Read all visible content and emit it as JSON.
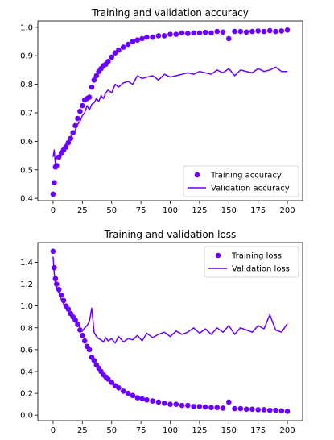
{
  "chart_data": [
    {
      "type": "line",
      "title": "Training and validation accuracy",
      "xlim": [
        -13,
        213
      ],
      "ylim": [
        0.392,
        1.022
      ],
      "x_ticks": [
        0,
        25,
        50,
        75,
        100,
        125,
        150,
        175,
        200
      ],
      "y_ticks": [
        0.4,
        0.5,
        0.6,
        0.7,
        0.8,
        0.9,
        1.0
      ],
      "x_tick_labels": [
        "0",
        "25",
        "50",
        "75",
        "100",
        "125",
        "150",
        "175",
        "200"
      ],
      "y_tick_labels": [
        "0.4",
        "0.5",
        "0.6",
        "0.7",
        "0.8",
        "0.9",
        "1.0"
      ],
      "legend_position": "lower-right",
      "series": [
        {
          "name": "Training accuracy",
          "style": "scatter",
          "color": "#6a00ff",
          "x": [
            0,
            1,
            2,
            3,
            5,
            7,
            9,
            11,
            13,
            15,
            17,
            19,
            21,
            23,
            25,
            27,
            29,
            31,
            33,
            35,
            37,
            39,
            41,
            43,
            45,
            47,
            50,
            53,
            56,
            60,
            64,
            68,
            72,
            76,
            80,
            85,
            90,
            95,
            100,
            105,
            110,
            115,
            120,
            125,
            130,
            135,
            140,
            145,
            150,
            155,
            160,
            165,
            170,
            175,
            180,
            185,
            190,
            195,
            200
          ],
          "y": [
            0.415,
            0.455,
            0.51,
            0.515,
            0.545,
            0.56,
            0.57,
            0.58,
            0.595,
            0.61,
            0.63,
            0.655,
            0.68,
            0.705,
            0.725,
            0.745,
            0.75,
            0.755,
            0.79,
            0.815,
            0.83,
            0.845,
            0.855,
            0.865,
            0.87,
            0.88,
            0.895,
            0.91,
            0.92,
            0.93,
            0.94,
            0.95,
            0.955,
            0.96,
            0.965,
            0.965,
            0.97,
            0.97,
            0.975,
            0.975,
            0.98,
            0.978,
            0.98,
            0.98,
            0.982,
            0.98,
            0.985,
            0.983,
            0.96,
            0.985,
            0.985,
            0.983,
            0.985,
            0.987,
            0.985,
            0.988,
            0.985,
            0.987,
            0.99
          ]
        },
        {
          "name": "Validation accuracy",
          "style": "line",
          "color": "#6a00ff",
          "x": [
            0,
            1,
            2,
            3,
            5,
            7,
            9,
            11,
            13,
            15,
            17,
            19,
            21,
            23,
            25,
            27,
            29,
            31,
            33,
            35,
            37,
            39,
            41,
            43,
            45,
            47,
            50,
            53,
            56,
            60,
            64,
            68,
            72,
            76,
            80,
            85,
            90,
            95,
            100,
            105,
            110,
            115,
            120,
            125,
            130,
            135,
            140,
            145,
            150,
            155,
            160,
            165,
            170,
            175,
            180,
            185,
            190,
            195,
            200
          ],
          "y": [
            0.545,
            0.57,
            0.52,
            0.55,
            0.545,
            0.555,
            0.58,
            0.59,
            0.605,
            0.615,
            0.625,
            0.64,
            0.66,
            0.67,
            0.69,
            0.7,
            0.725,
            0.71,
            0.73,
            0.735,
            0.75,
            0.74,
            0.76,
            0.75,
            0.77,
            0.78,
            0.77,
            0.8,
            0.79,
            0.805,
            0.81,
            0.8,
            0.83,
            0.82,
            0.825,
            0.83,
            0.815,
            0.835,
            0.825,
            0.83,
            0.835,
            0.84,
            0.835,
            0.845,
            0.84,
            0.835,
            0.85,
            0.84,
            0.855,
            0.83,
            0.85,
            0.845,
            0.84,
            0.855,
            0.845,
            0.85,
            0.86,
            0.845,
            0.845
          ]
        }
      ]
    },
    {
      "type": "line",
      "title": "Training and validation loss",
      "xlim": [
        -13,
        213
      ],
      "ylim": [
        -0.05,
        1.58
      ],
      "x_ticks": [
        0,
        25,
        50,
        75,
        100,
        125,
        150,
        175,
        200
      ],
      "y_ticks": [
        0.0,
        0.2,
        0.4,
        0.6,
        0.8,
        1.0,
        1.2,
        1.4
      ],
      "x_tick_labels": [
        "0",
        "25",
        "50",
        "75",
        "100",
        "125",
        "150",
        "175",
        "200"
      ],
      "y_tick_labels": [
        "0.0",
        "0.2",
        "0.4",
        "0.6",
        "0.8",
        "1.0",
        "1.2",
        "1.4"
      ],
      "legend_position": "upper-right",
      "series": [
        {
          "name": "Training loss",
          "style": "scatter",
          "color": "#6a00ff",
          "x": [
            0,
            1,
            2,
            3,
            5,
            7,
            9,
            11,
            13,
            15,
            17,
            19,
            21,
            23,
            25,
            27,
            29,
            31,
            33,
            35,
            37,
            39,
            41,
            43,
            45,
            47,
            50,
            53,
            56,
            60,
            64,
            68,
            72,
            76,
            80,
            85,
            90,
            95,
            100,
            105,
            110,
            115,
            120,
            125,
            130,
            135,
            140,
            145,
            150,
            155,
            160,
            165,
            170,
            175,
            180,
            185,
            190,
            195,
            200
          ],
          "y": [
            1.5,
            1.35,
            1.25,
            1.2,
            1.15,
            1.1,
            1.05,
            1.0,
            0.97,
            0.93,
            0.9,
            0.87,
            0.83,
            0.78,
            0.73,
            0.68,
            0.63,
            0.6,
            0.53,
            0.5,
            0.46,
            0.43,
            0.4,
            0.37,
            0.35,
            0.33,
            0.3,
            0.27,
            0.25,
            0.22,
            0.2,
            0.18,
            0.16,
            0.15,
            0.14,
            0.13,
            0.12,
            0.11,
            0.1,
            0.1,
            0.09,
            0.09,
            0.08,
            0.08,
            0.075,
            0.07,
            0.07,
            0.065,
            0.12,
            0.06,
            0.06,
            0.055,
            0.055,
            0.05,
            0.05,
            0.045,
            0.045,
            0.04,
            0.035
          ]
        },
        {
          "name": "Validation loss",
          "style": "line",
          "color": "#6a00ff",
          "x": [
            0,
            1,
            2,
            3,
            5,
            7,
            9,
            11,
            13,
            15,
            17,
            19,
            21,
            23,
            25,
            27,
            29,
            31,
            33,
            35,
            37,
            39,
            41,
            43,
            45,
            47,
            50,
            53,
            56,
            60,
            64,
            68,
            72,
            76,
            80,
            85,
            90,
            95,
            100,
            105,
            110,
            115,
            120,
            125,
            130,
            135,
            140,
            145,
            150,
            155,
            160,
            165,
            170,
            175,
            180,
            185,
            190,
            195,
            200
          ],
          "y": [
            1.45,
            1.3,
            1.2,
            1.17,
            1.12,
            1.06,
            1.02,
            0.98,
            0.95,
            0.92,
            0.88,
            0.86,
            0.85,
            0.8,
            0.77,
            0.8,
            0.82,
            0.86,
            0.98,
            0.76,
            0.72,
            0.7,
            0.69,
            0.67,
            0.71,
            0.68,
            0.7,
            0.66,
            0.72,
            0.67,
            0.7,
            0.69,
            0.73,
            0.68,
            0.75,
            0.71,
            0.74,
            0.76,
            0.72,
            0.77,
            0.74,
            0.76,
            0.8,
            0.75,
            0.79,
            0.74,
            0.8,
            0.76,
            0.82,
            0.74,
            0.8,
            0.78,
            0.76,
            0.82,
            0.79,
            0.92,
            0.78,
            0.76,
            0.84
          ]
        }
      ]
    }
  ]
}
